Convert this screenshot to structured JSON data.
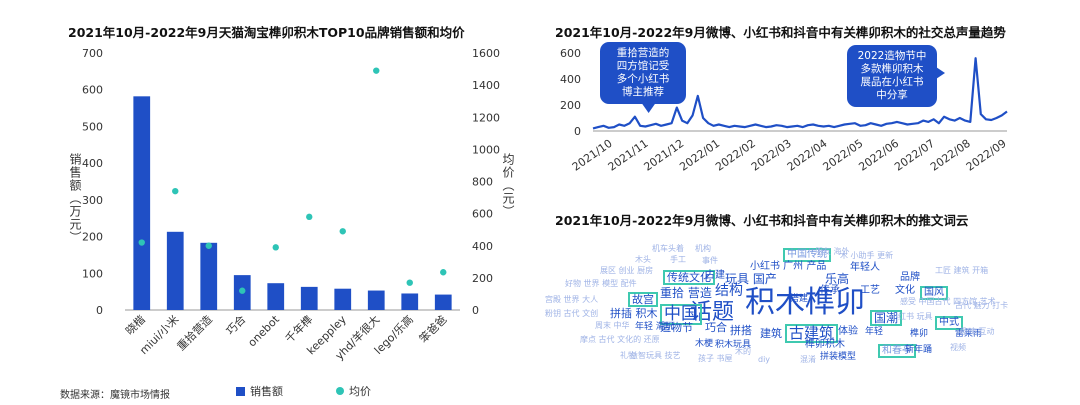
{
  "left_chart": {
    "title": "2021年10月-2022年9月天猫淘宝榫卯积木TOP10品牌销售额和均价",
    "ylabel_left": "销售额（万元）",
    "ylabel_right": "均价（元）",
    "source": "数据来源：魔镜市场情报",
    "legend_bar": "销售额",
    "legend_dot": "均价"
  },
  "right_chart": {
    "title": "2021年10月-2022年9月微博、小红书和抖音中有关榫卯积木的社交总声量趋势",
    "bubble1": [
      "重拾营造的",
      "四方馆记受",
      "多个小红书",
      "博主推荐"
    ],
    "bubble2": [
      "2022造物节中",
      "多款榫卯积木",
      "展品在小红书",
      "中分享"
    ]
  },
  "cloud": {
    "title": "2021年10月-2022年9月微博、小红书和抖音中有关榫卯积木的推文词云",
    "words": [
      {
        "t": "积木榫卯",
        "s": 30,
        "c": "#1f4fc6",
        "b": false
      },
      {
        "t": "话题",
        "s": 22,
        "c": "#1f4fc6",
        "b": false
      },
      {
        "t": "中国",
        "s": 17,
        "c": "#1f4fc6",
        "b": true
      },
      {
        "t": "古建筑",
        "s": 15,
        "c": "#1f4fc6",
        "b": true
      },
      {
        "t": "国潮",
        "s": 12,
        "c": "#1f4fc6",
        "b": true
      },
      {
        "t": "结构",
        "s": 14,
        "c": "#1f4fc6",
        "b": false
      },
      {
        "t": "传统文化",
        "s": 11,
        "c": "#1f4fc6",
        "b": true
      },
      {
        "t": "故宫",
        "s": 11,
        "c": "#1f4fc6",
        "b": true
      },
      {
        "t": "中国传统",
        "s": 10,
        "c": "#7a9ae0",
        "b": true
      },
      {
        "t": "国风",
        "s": 10,
        "c": "#1f4fc6",
        "b": true
      },
      {
        "t": "中式",
        "s": 10,
        "c": "#1f4fc6",
        "b": true
      },
      {
        "t": "和春亭",
        "s": 10,
        "c": "#7a9ae0",
        "b": true
      },
      {
        "t": "玩具 国产",
        "s": 12,
        "c": "#1f4fc6",
        "b": false
      },
      {
        "t": "乐高",
        "s": 12,
        "c": "#1f4fc6",
        "b": false
      },
      {
        "t": "重拾 营造",
        "s": 12,
        "c": "#1f4fc6",
        "b": false
      },
      {
        "t": "拼插 积木",
        "s": 11,
        "c": "#1f4fc6",
        "b": false
      },
      {
        "t": "造物节",
        "s": 11,
        "c": "#1f4fc6",
        "b": false
      },
      {
        "t": "巧合",
        "s": 11,
        "c": "#1f4fc6",
        "b": false
      },
      {
        "t": "拼搭",
        "s": 11,
        "c": "#1f4fc6",
        "b": false
      },
      {
        "t": "建筑",
        "s": 11,
        "c": "#1f4fc6",
        "b": false
      },
      {
        "t": "年轻人",
        "s": 10,
        "c": "#1f4fc6",
        "b": false
      },
      {
        "t": "传承",
        "s": 10,
        "c": "#1f4fc6",
        "b": false
      },
      {
        "t": "工艺",
        "s": 10,
        "c": "#1f4fc6",
        "b": false
      },
      {
        "t": "品牌",
        "s": 10,
        "c": "#1f4fc6",
        "b": false
      },
      {
        "t": "文化",
        "s": 10,
        "c": "#1f4fc6",
        "b": false
      },
      {
        "t": "小红书 广州 产品",
        "s": 10,
        "c": "#1f4fc6",
        "b": false
      },
      {
        "t": "古建",
        "s": 10,
        "c": "#1f4fc6",
        "b": false
      },
      {
        "t": "体验",
        "s": 10,
        "c": "#1f4fc6",
        "b": false
      },
      {
        "t": "年轻",
        "s": 9,
        "c": "#1f4fc6",
        "b": false
      },
      {
        "t": "榫卯积木",
        "s": 10,
        "c": "#1f4fc6",
        "b": false
      },
      {
        "t": "拼装模型",
        "s": 9,
        "c": "#1f4fc6",
        "b": false
      },
      {
        "t": "榫卯",
        "s": 9,
        "c": "#1f4fc6",
        "b": false
      },
      {
        "t": "搭建",
        "s": 9,
        "c": "#1f4fc6",
        "b": false
      },
      {
        "t": "木梗",
        "s": 9,
        "c": "#1f4fc6",
        "b": false
      },
      {
        "t": "积木玩具",
        "s": 9,
        "c": "#1f4fc6",
        "b": false
      },
      {
        "t": "年轻 潮玩",
        "s": 9,
        "c": "#1f4fc6",
        "b": false
      },
      {
        "t": "斩年踊",
        "s": 9,
        "c": "#1f4fc6",
        "b": false
      },
      {
        "t": "雷莱雨",
        "s": 9,
        "c": "#1f4fc6",
        "b": false
      },
      {
        "t": "机车头着",
        "s": 8,
        "c": "#9fb3e6",
        "b": false
      },
      {
        "t": "机构",
        "s": 8,
        "c": "#9fb3e6",
        "b": false
      },
      {
        "t": "朋友 海外",
        "s": 8,
        "c": "#9fb3e6",
        "b": false
      },
      {
        "t": "木头",
        "s": 8,
        "c": "#9fb3e6",
        "b": false
      },
      {
        "t": "手工",
        "s": 8,
        "c": "#9fb3e6",
        "b": false
      },
      {
        "t": "事件",
        "s": 8,
        "c": "#9fb3e6",
        "b": false
      },
      {
        "t": "木 小助手 更新",
        "s": 8,
        "c": "#9fb3e6",
        "b": false
      },
      {
        "t": "展区 创业 厨房",
        "s": 8,
        "c": "#9fb3e6",
        "b": false
      },
      {
        "t": "工匠 建筑 开箱",
        "s": 8,
        "c": "#9fb3e6",
        "b": false
      },
      {
        "t": "好物 世界 模型 配件",
        "s": 8,
        "c": "#9fb3e6",
        "b": false
      },
      {
        "t": "感受 中国古代 四方馆 艺术",
        "s": 8,
        "c": "#9fb3e6",
        "b": false
      },
      {
        "t": "宫殿 世界 大人",
        "s": 8,
        "c": "#9fb3e6",
        "b": false
      },
      {
        "t": "古代 魅力 打卡",
        "s": 8,
        "c": "#9fb3e6",
        "b": false
      },
      {
        "t": "粉钥 古代 文创",
        "s": 8,
        "c": "#9fb3e6",
        "b": false
      },
      {
        "t": "周末 中华",
        "s": 8,
        "c": "#9fb3e6",
        "b": false
      },
      {
        "t": "小红书 玩具",
        "s": 8,
        "c": "#9fb3e6",
        "b": false
      },
      {
        "t": "趣味 互动",
        "s": 8,
        "c": "#9fb3e6",
        "b": false
      },
      {
        "t": "摩点 古代 文化的 还原",
        "s": 8,
        "c": "#9fb3e6",
        "b": false
      },
      {
        "t": "礼物",
        "s": 8,
        "c": "#9fb3e6",
        "b": false
      },
      {
        "t": "木的",
        "s": 8,
        "c": "#9fb3e6",
        "b": false
      },
      {
        "t": "视频",
        "s": 8,
        "c": "#9fb3e6",
        "b": false
      },
      {
        "t": "益智玩具 技艺",
        "s": 8,
        "c": "#9fb3e6",
        "b": false
      },
      {
        "t": "孩子 书屋",
        "s": 8,
        "c": "#9fb3e6",
        "b": false
      },
      {
        "t": "diy",
        "s": 8,
        "c": "#9fb3e6",
        "b": false
      },
      {
        "t": "混淆",
        "s": 8,
        "c": "#9fb3e6",
        "b": false
      }
    ]
  },
  "chart_data": [
    {
      "type": "bar",
      "title": "2021年10月-2022年9月天猫淘宝榫卯积木TOP10品牌销售额和均价",
      "categories": [
        "晓楷",
        "miui/小米",
        "重拾营造",
        "巧合",
        "onebot",
        "千年榫",
        "keeppley",
        "yhd/羊很大",
        "lego/乐高",
        "笨爸爸"
      ],
      "series": [
        {
          "name": "销售额",
          "axis": "left",
          "kind": "bar",
          "color": "#1f4fc6",
          "values": [
            582,
            213,
            183,
            95,
            73,
            63,
            58,
            53,
            45,
            42
          ]
        },
        {
          "name": "均价",
          "axis": "right",
          "kind": "scatter",
          "color": "#2ec4b6",
          "values": [
            420,
            740,
            400,
            120,
            390,
            580,
            490,
            1490,
            170,
            235
          ]
        }
      ],
      "ylabel": "销售额（万元）",
      "ylabel_right": "均价（元）",
      "ylim": [
        0,
        700
      ],
      "yticks": [
        0,
        100,
        200,
        300,
        400,
        500,
        600,
        700
      ],
      "ylim_right": [
        0,
        1600
      ],
      "yticks_right": [
        0,
        200,
        400,
        600,
        800,
        1000,
        1200,
        1400,
        1600
      ],
      "legend": "bottom",
      "grid": false
    },
    {
      "type": "line",
      "title": "2021年10月-2022年9月微博、小红书和抖音中有关榫卯积木的社交总声量趋势",
      "x_ticks": [
        "2021/10",
        "2021/11",
        "2021/12",
        "2022/01",
        "2022/02",
        "2022/03",
        "2022/04",
        "2022/05",
        "2022/06",
        "2022/07",
        "2022/08",
        "2022/09"
      ],
      "ylim": [
        0,
        600
      ],
      "yticks": [
        0,
        200,
        400,
        600
      ],
      "series": [
        {
          "name": "",
          "color": "#1f4fc6",
          "values": [
            20,
            30,
            40,
            25,
            30,
            50,
            40,
            60,
            110,
            40,
            35,
            45,
            55,
            40,
            50,
            60,
            180,
            80,
            60,
            120,
            270,
            100,
            60,
            40,
            50,
            40,
            30,
            40,
            35,
            30,
            40,
            50,
            40,
            30,
            35,
            45,
            40,
            30,
            35,
            40,
            30,
            45,
            50,
            40,
            35,
            40,
            30,
            40,
            50,
            55,
            60,
            40,
            45,
            60,
            50,
            40,
            55,
            60,
            70,
            60,
            50,
            55,
            60,
            80,
            70,
            90,
            60,
            110,
            90,
            80,
            100,
            80,
            70,
            560,
            130,
            90,
            85,
            100,
            120,
            150
          ]
        }
      ],
      "grid": false
    }
  ]
}
